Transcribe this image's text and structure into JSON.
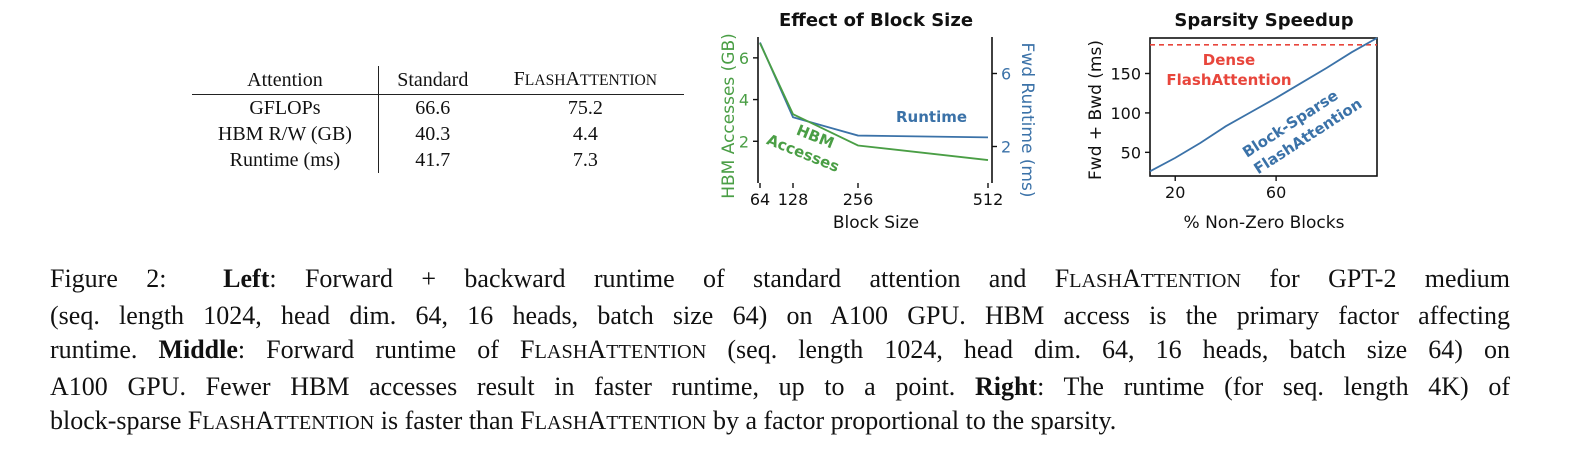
{
  "table": {
    "headers": [
      "Attention",
      "Standard",
      "FlashAttention"
    ],
    "rows": [
      [
        "GFLOPs",
        "66.6",
        "75.2"
      ],
      [
        "HBM R/W (GB)",
        "40.3",
        "4.4"
      ],
      [
        "Runtime (ms)",
        "41.7",
        "7.3"
      ]
    ]
  },
  "chart_data": [
    {
      "type": "line",
      "title": "Effect of Block Size",
      "xlabel": "Block Size",
      "ylabel_left": "HBM Accesses (GB)",
      "ylabel_right": "Fwd Runtime (ms)",
      "x": [
        64,
        128,
        256,
        512
      ],
      "x_ticks": [
        "64",
        "128",
        "256",
        "512"
      ],
      "y_left_ticks": [
        "2",
        "4",
        "6"
      ],
      "y_right_ticks": [
        "2",
        "6"
      ],
      "ylim_left": [
        0,
        7
      ],
      "ylim_right": [
        0,
        8
      ],
      "series": [
        {
          "name": "HBM Accesses",
          "axis": "left",
          "color": "#4a9e45",
          "values": [
            6.7,
            3.3,
            1.8,
            1.1
          ],
          "label_lines": [
            "HBM",
            "Accesses"
          ]
        },
        {
          "name": "Runtime",
          "axis": "right",
          "color": "#3b72a8",
          "values": [
            7.7,
            3.6,
            2.6,
            2.5
          ],
          "label_lines": [
            "Runtime"
          ]
        }
      ]
    },
    {
      "type": "line",
      "title": "Sparsity Speedup",
      "xlabel": "% Non-Zero Blocks",
      "ylabel": "Fwd + Bwd (ms)",
      "x_ticks": [
        "20",
        "60"
      ],
      "y_ticks": [
        "50",
        "100",
        "150"
      ],
      "xlim": [
        10,
        100
      ],
      "ylim": [
        20,
        195
      ],
      "series": [
        {
          "name": "Dense FlashAttention",
          "color": "#e8463c",
          "style": "dashed",
          "x": [
            10,
            100
          ],
          "values": [
            187,
            187
          ],
          "label_lines": [
            "Dense",
            "FlashAttention"
          ]
        },
        {
          "name": "Block-Sparse FlashAttention",
          "color": "#3b72a8",
          "style": "solid",
          "x": [
            10,
            20,
            30,
            40,
            50,
            60,
            70,
            80,
            90,
            100
          ],
          "values": [
            26,
            43,
            62,
            83,
            101,
            119,
            138,
            157,
            177,
            198
          ],
          "label_lines": [
            "Block-Sparse",
            "FlashAttention"
          ]
        }
      ]
    }
  ],
  "caption": {
    "label": "Figure 2:",
    "left_label": "Left",
    "middle_label": "Middle",
    "right_label": "Right",
    "l1a": ": Forward + backward runtime of standard attention and ",
    "l1b": " for GPT-2 medium",
    "l2": "(seq. length 1024, head dim. 64, 16 heads, batch size 64) on A100 GPU. HBM access is the primary factor affecting",
    "l3a": "runtime. ",
    "l3b": ": Forward runtime of ",
    "l3c": " (seq. length 1024, head dim. 64, 16 heads, batch size 64) on",
    "l4a": "A100 GPU. Fewer HBM accesses result in faster runtime, up to a point. ",
    "l4b": ": The runtime (for seq. length 4K) of",
    "l5a": "block-sparse ",
    "l5b": " is faster than ",
    "l5c": " by a factor proportional to the sparsity.",
    "flash_name_parts": [
      "F",
      "LASH",
      "A",
      "TTENTION"
    ]
  },
  "colors": {
    "green": "#4a9e45",
    "blue": "#3b72a8",
    "red": "#e8463c"
  }
}
